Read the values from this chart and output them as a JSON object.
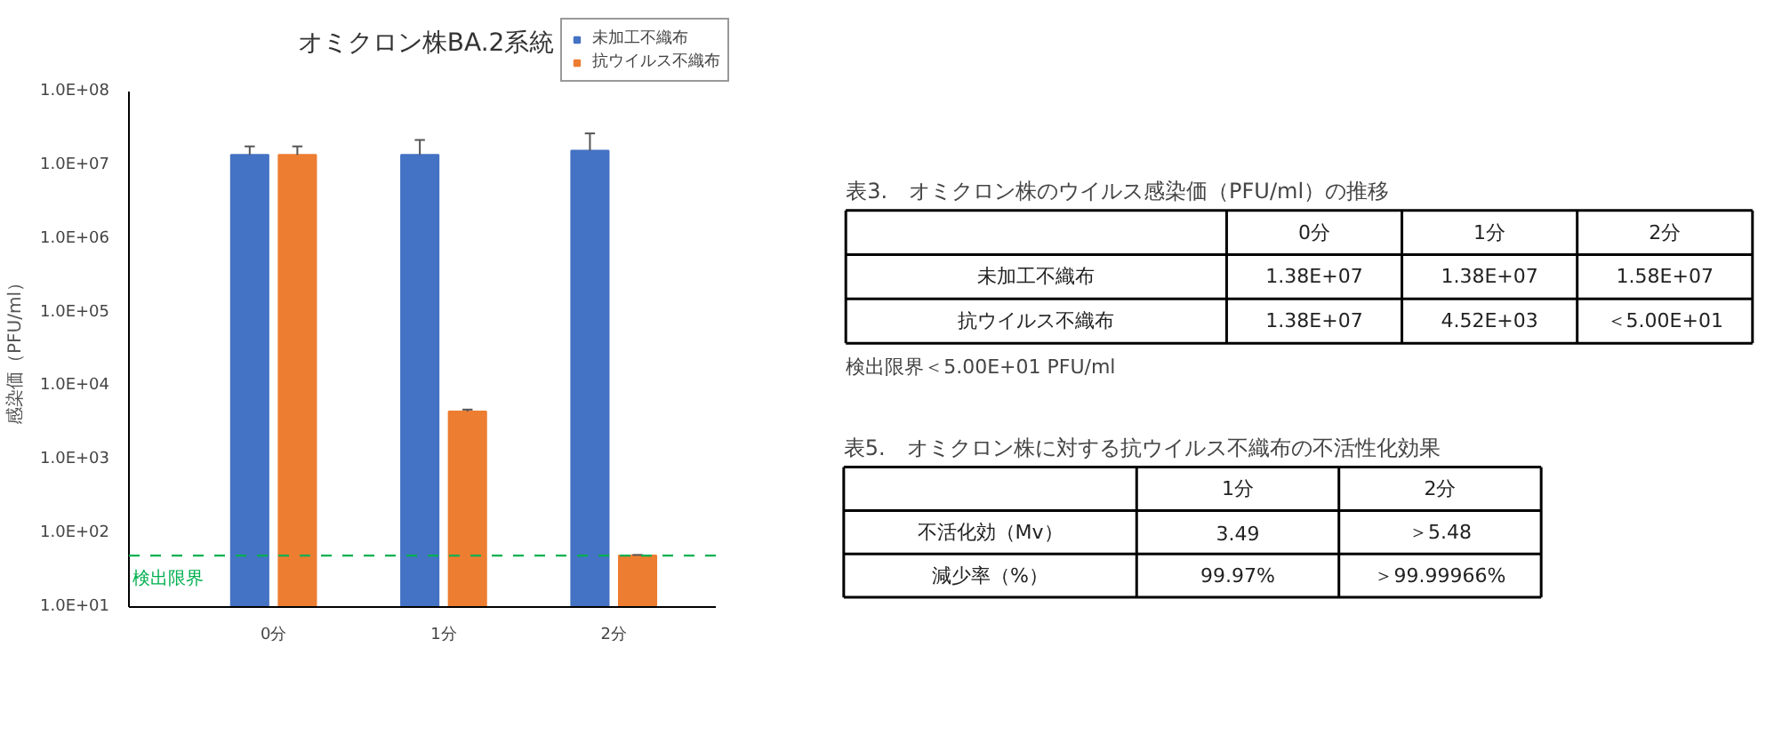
{
  "chart_data": [
    {
      "type": "bar",
      "title": "オミクロン株BA.2系統",
      "ylabel": "感染価（PFU/ml）",
      "categories": [
        "0分",
        "1分",
        "2分"
      ],
      "log": true,
      "ylim": [
        10,
        100000000
      ],
      "yticks": [
        {
          "value": 10,
          "label": "1.0E+01"
        },
        {
          "value": 100,
          "label": "1.0E+02"
        },
        {
          "value": 1000,
          "label": "1.0E+03"
        },
        {
          "value": 10000,
          "label": "1.0E+04"
        },
        {
          "value": 100000,
          "label": "1.0E+05"
        },
        {
          "value": 1000000,
          "label": "1.0E+06"
        },
        {
          "value": 10000000,
          "label": "1.0E+07"
        },
        {
          "value": 100000000,
          "label": "1.0E+08"
        }
      ],
      "series": [
        {
          "name": "未加工不織布",
          "color": "#4472c4",
          "values": [
            13800000,
            13800000,
            15800000
          ],
          "errors": [
            [
              13800000,
              18000000
            ],
            [
              13800000,
              22000000
            ],
            [
              15800000,
              27000000
            ]
          ]
        },
        {
          "name": "抗ウイルス不織布",
          "color": "#ed7d31",
          "values": [
            13800000,
            4520,
            50
          ],
          "errors": [
            [
              13800000,
              18000000
            ],
            [
              4520,
              4800
            ],
            [
              50,
              51
            ]
          ]
        }
      ],
      "ref_lines": [
        {
          "axis": "y",
          "value": 50,
          "label": "検出限界",
          "color": "#00b050",
          "line_style": "dashed"
        }
      ],
      "legend": "top right",
      "grid": false
    },
    {
      "type": "other",
      "title": "表3.　オミクロン株のウイルス感染価（PFU/ml）の推移",
      "categories": [
        "0分",
        "1分",
        "2分"
      ],
      "y_categories": [
        "未加工不織布",
        "抗ウイルス不織布"
      ],
      "cell_labels": [
        [
          "1.38E+07",
          "1.38E+07",
          "1.58E+07"
        ],
        [
          "1.38E+07",
          "4.52E+03",
          "＜5.00E+01"
        ]
      ],
      "annotations": [
        "検出限界＜5.00E+01 PFU/ml"
      ]
    },
    {
      "type": "other",
      "title": "表5.　オミクロン株に対する抗ウイルス不織布の不活性化効果",
      "categories": [
        "1分",
        "2分"
      ],
      "y_categories": [
        "不活化効（Mv）",
        "減少率（%）"
      ],
      "cell_labels": [
        [
          "3.49",
          "＞5.48"
        ],
        [
          "99.97%",
          "＞99.99966%"
        ]
      ]
    }
  ]
}
